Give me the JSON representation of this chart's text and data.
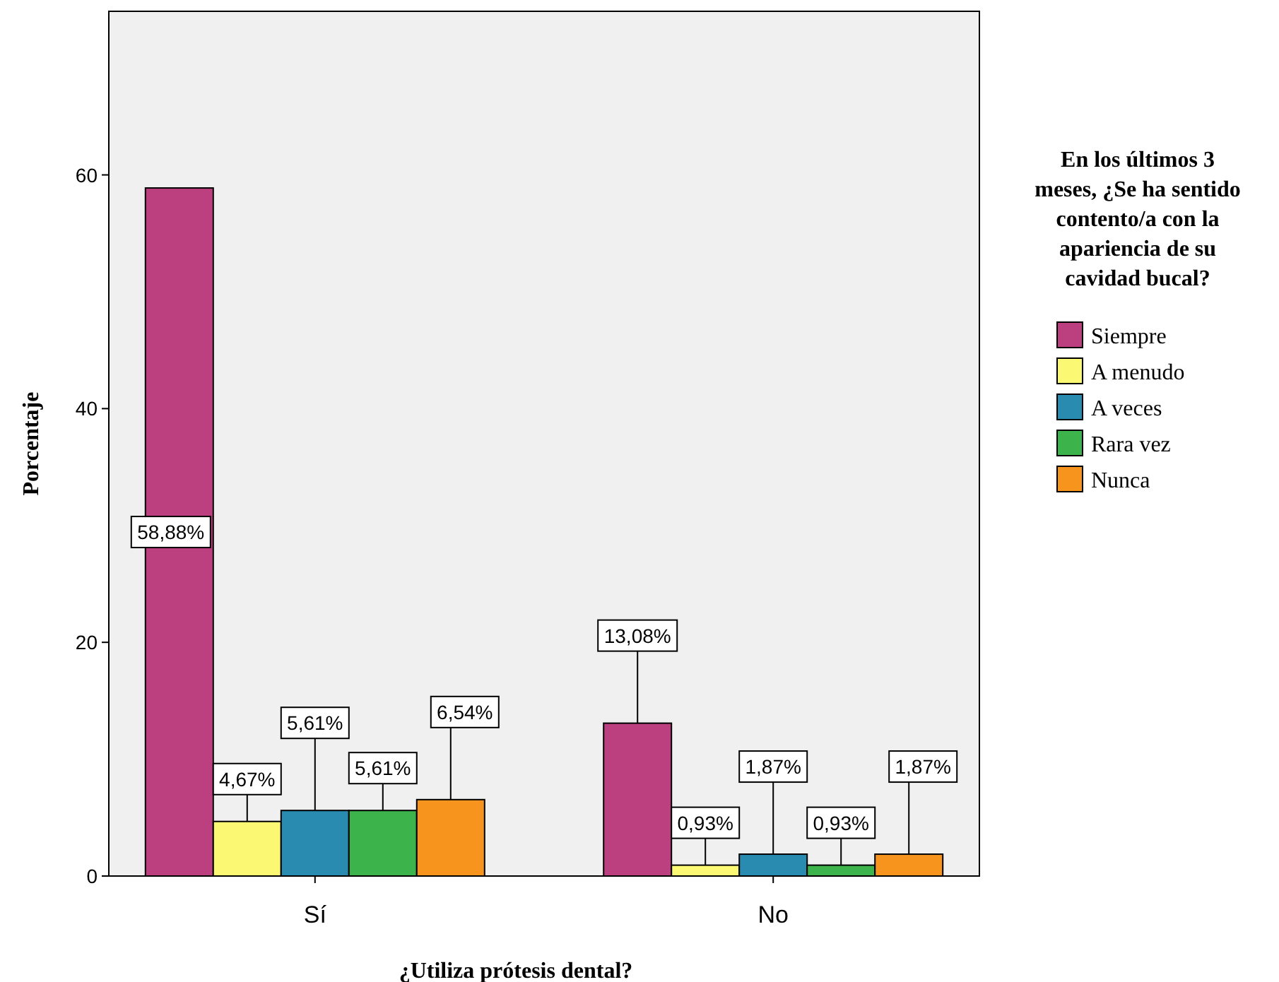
{
  "chart_data": {
    "type": "bar",
    "xlabel": "¿Utiliza prótesis dental?",
    "ylabel": "Porcentaje",
    "legend_title": "En los últimos 3 meses, ¿Se ha sentido contento/a con la apariencia de su cavidad bucal?",
    "legend": "right",
    "categories": [
      "Sí",
      "No"
    ],
    "ylim": [
      0,
      74
    ],
    "yticks": [
      0,
      20,
      40,
      60
    ],
    "series": [
      {
        "name": "Siempre",
        "color": "#bc3f7f",
        "values": [
          58.88,
          13.08
        ],
        "value_labels": [
          "58,88%",
          "13,08%"
        ]
      },
      {
        "name": "A menudo",
        "color": "#fbf873",
        "values": [
          4.67,
          0.93
        ],
        "value_labels": [
          "4,67%",
          "0,93%"
        ]
      },
      {
        "name": "A veces",
        "color": "#2a8bb0",
        "values": [
          5.61,
          1.87
        ],
        "value_labels": [
          "5,61%",
          "1,87%"
        ]
      },
      {
        "name": "Rara vez",
        "color": "#3cb44b",
        "values": [
          5.61,
          0.93
        ],
        "value_labels": [
          "5,61%",
          "0,93%"
        ]
      },
      {
        "name": "Nunca",
        "color": "#f7941d",
        "values": [
          6.54,
          1.87
        ],
        "value_labels": [
          "6,54%",
          "1,87%"
        ]
      }
    ]
  }
}
